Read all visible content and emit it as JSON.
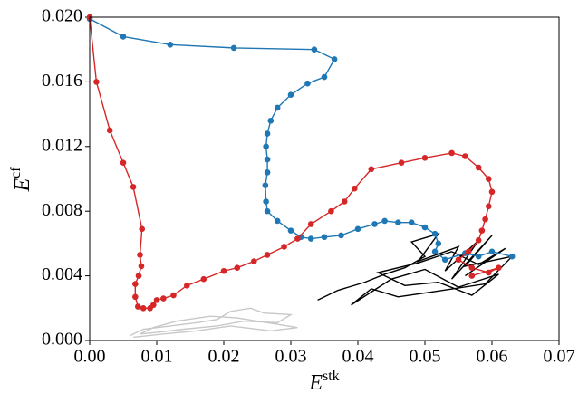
{
  "chart_data": {
    "type": "line",
    "xlabel": {
      "base": "E",
      "sup": "stk"
    },
    "ylabel": {
      "base": "E",
      "sup": "cf"
    },
    "xlim": [
      0,
      0.07
    ],
    "ylim": [
      0,
      0.02
    ],
    "xticks": [
      {
        "value": 0,
        "label": "0.00"
      },
      {
        "value": 0.01,
        "label": "0.01"
      },
      {
        "value": 0.02,
        "label": "0.02"
      },
      {
        "value": 0.03,
        "label": "0.03"
      },
      {
        "value": 0.04,
        "label": "0.04"
      },
      {
        "value": 0.05,
        "label": "0.05"
      },
      {
        "value": 0.06,
        "label": "0.06"
      },
      {
        "value": 0.07,
        "label": "0.07"
      }
    ],
    "yticks": [
      {
        "value": 0,
        "label": "0.000"
      },
      {
        "value": 0.004,
        "label": "0.004"
      },
      {
        "value": 0.008,
        "label": "0.008"
      },
      {
        "value": 0.012,
        "label": "0.012"
      },
      {
        "value": 0.016,
        "label": "0.016"
      },
      {
        "value": 0.02,
        "label": "0.020"
      }
    ],
    "grid": false,
    "series": [
      {
        "color": "#c8c8c8",
        "markers": false,
        "x": [
          0.006,
          0.008,
          0.012,
          0.016,
          0.019,
          0.021,
          0.024,
          0.026,
          0.03,
          0.028,
          0.023,
          0.019,
          0.014,
          0.01,
          0.0075,
          0.0095,
          0.013,
          0.018,
          0.022,
          0.025,
          0.031,
          0.027,
          0.021,
          0.016,
          0.011,
          0.0065
        ],
        "values": [
          0.0003,
          0.0007,
          0.0009,
          0.0011,
          0.0013,
          0.0018,
          0.002,
          0.0017,
          0.0016,
          0.0011,
          0.0012,
          0.0009,
          0.0007,
          0.0005,
          0.0004,
          0.0008,
          0.0012,
          0.0015,
          0.0014,
          0.0012,
          0.0008,
          0.0006,
          0.0009,
          0.0006,
          0.0004,
          0.0002
        ]
      },
      {
        "color": "#000000",
        "markers": false,
        "x": [
          0.034,
          0.037,
          0.041,
          0.044,
          0.047,
          0.05,
          0.048,
          0.052,
          0.049,
          0.055,
          0.053,
          0.058,
          0.054,
          0.06,
          0.056,
          0.063,
          0.059,
          0.051,
          0.046,
          0.042,
          0.039,
          0.045,
          0.05,
          0.055,
          0.061,
          0.057,
          0.052,
          0.047,
          0.043,
          0.049,
          0.054,
          0.058,
          0.062,
          0.056
        ],
        "values": [
          0.0025,
          0.0031,
          0.0036,
          0.0041,
          0.0045,
          0.0052,
          0.0061,
          0.0066,
          0.0049,
          0.0058,
          0.0043,
          0.0062,
          0.0038,
          0.0065,
          0.0046,
          0.0052,
          0.0035,
          0.003,
          0.0027,
          0.0032,
          0.0022,
          0.0038,
          0.0044,
          0.0033,
          0.0041,
          0.0028,
          0.0036,
          0.0034,
          0.0042,
          0.0048,
          0.0055,
          0.0047,
          0.0057,
          0.004
        ]
      },
      {
        "color": "#1f77b4",
        "markers": true,
        "x": [
          0.0,
          0.005,
          0.012,
          0.0215,
          0.0335,
          0.0365,
          0.035,
          0.0325,
          0.03,
          0.028,
          0.027,
          0.0265,
          0.0263,
          0.0265,
          0.0265,
          0.0262,
          0.0263,
          0.0265,
          0.028,
          0.03,
          0.0315,
          0.033,
          0.035,
          0.0375,
          0.04,
          0.0425,
          0.044,
          0.046,
          0.048,
          0.05,
          0.0515,
          0.052,
          0.0515,
          0.053,
          0.056,
          0.058,
          0.06,
          0.063
        ],
        "values": [
          0.0199,
          0.0188,
          0.0183,
          0.0181,
          0.018,
          0.0174,
          0.0163,
          0.0159,
          0.0152,
          0.0144,
          0.0136,
          0.0128,
          0.012,
          0.0112,
          0.0104,
          0.0096,
          0.0086,
          0.008,
          0.0074,
          0.0068,
          0.0064,
          0.0063,
          0.0064,
          0.0065,
          0.0069,
          0.0072,
          0.0074,
          0.0073,
          0.0073,
          0.007,
          0.0066,
          0.006,
          0.0055,
          0.005,
          0.0054,
          0.0052,
          0.0055,
          0.0052
        ]
      },
      {
        "color": "#d62728",
        "markers": true,
        "x": [
          0.0,
          0.001,
          0.003,
          0.005,
          0.0065,
          0.0078,
          0.0075,
          0.0077,
          0.0073,
          0.0068,
          0.0068,
          0.0072,
          0.008,
          0.009,
          0.0095,
          0.01,
          0.011,
          0.0125,
          0.0145,
          0.017,
          0.02,
          0.022,
          0.0245,
          0.0265,
          0.029,
          0.031,
          0.033,
          0.036,
          0.038,
          0.0395,
          0.042,
          0.0465,
          0.05,
          0.054,
          0.056,
          0.058,
          0.0595,
          0.06,
          0.0595,
          0.059,
          0.0585,
          0.058,
          0.0565,
          0.055,
          0.057,
          0.0595,
          0.061,
          0.057
        ],
        "values": [
          0.02,
          0.016,
          0.013,
          0.011,
          0.0095,
          0.0069,
          0.0053,
          0.0046,
          0.004,
          0.0035,
          0.0027,
          0.0021,
          0.002,
          0.002,
          0.0022,
          0.0025,
          0.0026,
          0.0028,
          0.0034,
          0.0038,
          0.0043,
          0.0045,
          0.0049,
          0.0053,
          0.0058,
          0.0063,
          0.0072,
          0.008,
          0.0086,
          0.0094,
          0.0106,
          0.011,
          0.0113,
          0.0116,
          0.0114,
          0.0107,
          0.01,
          0.0092,
          0.0083,
          0.0075,
          0.0068,
          0.0062,
          0.0055,
          0.005,
          0.0045,
          0.0042,
          0.0045,
          0.004
        ]
      }
    ]
  }
}
